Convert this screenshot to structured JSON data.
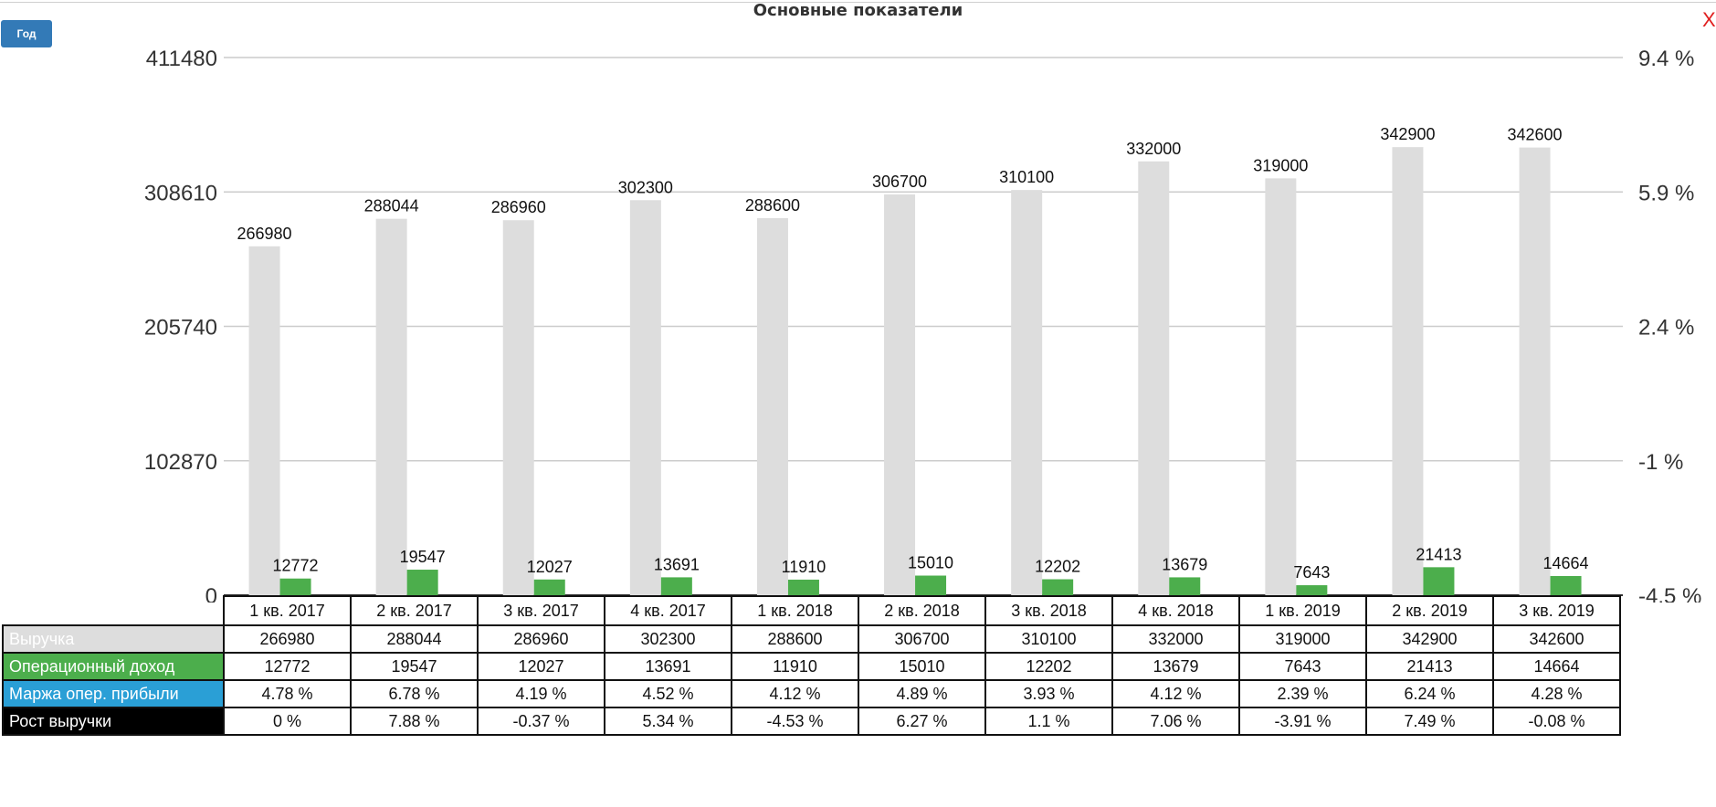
{
  "title": "Основные показатели",
  "period_button": "Год",
  "close_icon": "X",
  "colors": {
    "revenue": "#dddddd",
    "op_income": "#4cae4c",
    "margin": "#2a9fd6",
    "growth": "#000000",
    "button": "#337ab7",
    "close": "#e02020"
  },
  "chart_data": {
    "type": "bar",
    "title": "Основные показатели",
    "categories": [
      "1 кв. 2017",
      "2 кв. 2017",
      "3 кв. 2017",
      "4 кв. 2017",
      "1 кв. 2018",
      "2 кв. 2018",
      "3 кв. 2018",
      "4 кв. 2018",
      "1 кв. 2019",
      "2 кв. 2019",
      "3 кв. 2019"
    ],
    "series": [
      {
        "name": "Выручка",
        "values": [
          266980,
          288044,
          286960,
          302300,
          288600,
          306700,
          310100,
          332000,
          319000,
          342900,
          342600
        ]
      },
      {
        "name": "Операционный доход",
        "values": [
          12772,
          19547,
          12027,
          13691,
          11910,
          15010,
          12202,
          13679,
          7643,
          21413,
          14664
        ]
      }
    ],
    "left_axis": {
      "ticks": [
        "0",
        "102870",
        "205740",
        "308610",
        "411480"
      ],
      "ylim": [
        0,
        411480
      ]
    },
    "right_axis": {
      "ticks": [
        "-4.5 %",
        "-1 %",
        "2.4 %",
        "5.9 %",
        "9.4 %"
      ]
    },
    "grid": true
  },
  "table": {
    "rows": [
      {
        "label": "Выручка",
        "values": [
          "266980",
          "288044",
          "286960",
          "302300",
          "288600",
          "306700",
          "310100",
          "332000",
          "319000",
          "342900",
          "342600"
        ]
      },
      {
        "label": "Операционный доход",
        "values": [
          "12772",
          "19547",
          "12027",
          "13691",
          "11910",
          "15010",
          "12202",
          "13679",
          "7643",
          "21413",
          "14664"
        ]
      },
      {
        "label": "Маржа опер. прибыли",
        "values": [
          "4.78 %",
          "6.78 %",
          "4.19 %",
          "4.52 %",
          "4.12 %",
          "4.89 %",
          "3.93 %",
          "4.12 %",
          "2.39 %",
          "6.24 %",
          "4.28 %"
        ]
      },
      {
        "label": "Рост выручки",
        "values": [
          "0 %",
          "7.88 %",
          "-0.37 %",
          "5.34 %",
          "-4.53 %",
          "6.27 %",
          "1.1 %",
          "7.06 %",
          "-3.91 %",
          "7.49 %",
          "-0.08 %"
        ]
      }
    ]
  }
}
